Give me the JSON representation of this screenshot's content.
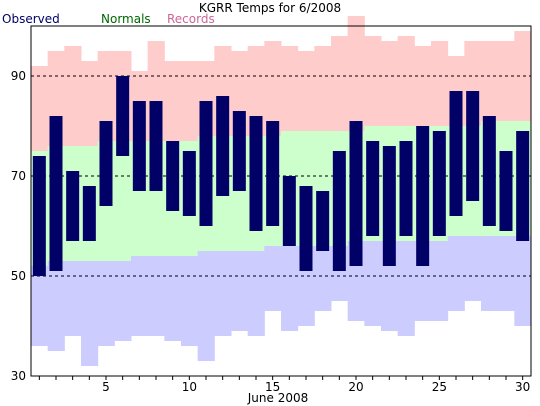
{
  "chart_data": {
    "type": "bar",
    "title": "KGRR Temps for 6/2008",
    "legend": [
      {
        "label": "Observed",
        "color": "#000066"
      },
      {
        "label": "Normals",
        "color": "#006600"
      },
      {
        "label": "Records",
        "color": "#cc6699"
      }
    ],
    "xlabel": "June 2008",
    "ylabel": "",
    "xlim": [
      1,
      30
    ],
    "ylim": [
      30,
      100
    ],
    "x_ticks": [
      5,
      10,
      15,
      20,
      25,
      30
    ],
    "x_tick_labels": [
      "5",
      "10",
      "15",
      "20",
      "25",
      "30"
    ],
    "y_ticks": [
      30,
      50,
      70,
      90
    ],
    "y_tick_labels": [
      "30",
      "50",
      "70",
      "90"
    ],
    "grid": "dashed horizontal at 50, 70, 90",
    "colors": {
      "observed": "#000066",
      "normals_band": "#ccffcc",
      "record_high_band": "#ffcccc",
      "record_low_band": "#ccccff",
      "axis": "#000000"
    },
    "days": [
      1,
      2,
      3,
      4,
      5,
      6,
      7,
      8,
      9,
      10,
      11,
      12,
      13,
      14,
      15,
      16,
      17,
      18,
      19,
      20,
      21,
      22,
      23,
      24,
      25,
      26,
      27,
      28,
      29,
      30
    ],
    "observed_high": [
      74,
      82,
      71,
      68,
      81,
      90,
      85,
      85,
      77,
      75,
      85,
      86,
      83,
      82,
      81,
      70,
      68,
      67,
      75,
      81,
      77,
      76,
      77,
      80,
      79,
      87,
      87,
      82,
      75,
      79
    ],
    "observed_low": [
      50,
      51,
      57,
      57,
      64,
      74,
      67,
      67,
      63,
      62,
      60,
      66,
      67,
      59,
      60,
      56,
      51,
      55,
      51,
      52,
      58,
      52,
      58,
      52,
      58,
      62,
      65,
      60,
      59,
      57
    ],
    "normal_high": [
      75,
      76,
      76,
      76,
      77,
      77,
      77,
      77,
      77,
      77,
      78,
      78,
      78,
      78,
      78,
      79,
      79,
      79,
      79,
      79,
      80,
      80,
      80,
      80,
      80,
      80,
      80,
      81,
      81,
      81
    ],
    "normal_low": [
      52,
      53,
      53,
      53,
      53,
      53,
      54,
      54,
      54,
      54,
      55,
      55,
      55,
      55,
      56,
      56,
      56,
      56,
      56,
      57,
      57,
      57,
      57,
      57,
      57,
      58,
      58,
      58,
      58,
      58
    ],
    "record_high": [
      92,
      95,
      96,
      93,
      95,
      95,
      91,
      97,
      93,
      93,
      93,
      96,
      95,
      96,
      97,
      96,
      95,
      96,
      98,
      102,
      98,
      97,
      98,
      96,
      97,
      94,
      97,
      97,
      97,
      99
    ],
    "record_low": [
      36,
      35,
      38,
      32,
      36,
      37,
      38,
      38,
      37,
      36,
      33,
      38,
      39,
      38,
      43,
      39,
      40,
      43,
      45,
      41,
      40,
      39,
      38,
      41,
      41,
      43,
      45,
      43,
      43,
      40
    ]
  }
}
